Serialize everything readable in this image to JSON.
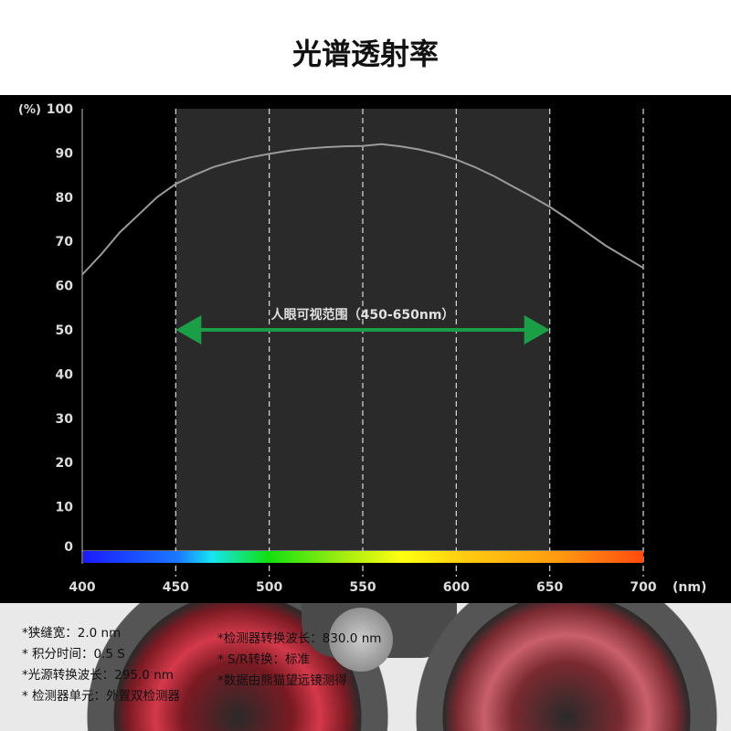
{
  "title": "光谱透射率",
  "chart_data": {
    "type": "line",
    "title": "光谱透射率",
    "ylabel": "(%)",
    "xlabel": "(nm)",
    "xlim": [
      400,
      700
    ],
    "ylim": [
      0,
      100
    ],
    "xticks": [
      400,
      450,
      500,
      550,
      600,
      650,
      700
    ],
    "yticks": [
      0,
      10,
      20,
      30,
      40,
      50,
      60,
      70,
      80,
      90,
      100
    ],
    "grid": "vertical dashed",
    "highlight_range": [
      450,
      650
    ],
    "annotation": {
      "text": "人眼可视范围（450-650nm）",
      "from": 450,
      "to": 650,
      "y": 50,
      "color": "#1a9e46"
    },
    "series": [
      {
        "color": "#9a9a9a",
        "x": [
          400,
          410,
          420,
          430,
          440,
          450,
          460,
          470,
          480,
          490,
          500,
          510,
          520,
          530,
          540,
          550,
          560,
          570,
          580,
          590,
          600,
          610,
          620,
          630,
          640,
          650,
          660,
          670,
          680,
          690,
          700
        ],
        "y": [
          62.5,
          67,
          72,
          76,
          80,
          83,
          85,
          86.8,
          88,
          89,
          89.8,
          90.5,
          91,
          91.3,
          91.5,
          91.6,
          92,
          91.5,
          90.8,
          89.8,
          88.5,
          86.8,
          84.8,
          82.5,
          80.2,
          77.8,
          75,
          72,
          69,
          66.5,
          64
        ]
      }
    ]
  },
  "notes_left": [
    "*狭缝宽：2.0 nm",
    "* 积分时间：0.5 S",
    "*光源转换波长：295.0 nm",
    "* 检测器单元：外置双检测器"
  ],
  "notes_right": [
    "*检测器转换波长：830.0 nm",
    "* S/R转换：标准",
    "*数据由熊猫望远镜测得"
  ]
}
